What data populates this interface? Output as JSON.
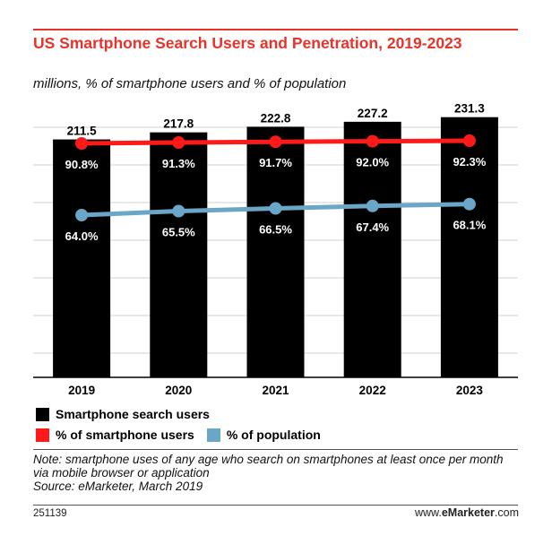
{
  "header": {
    "title": "US Smartphone Search Users and Penetration, 2019-2023",
    "subtitle": "millions, % of smartphone users and % of population"
  },
  "chart_data": {
    "type": "bar",
    "categories": [
      "2019",
      "2020",
      "2021",
      "2022",
      "2023"
    ],
    "series": [
      {
        "name": "Smartphone search users",
        "type": "bar",
        "color": "#000000",
        "values": [
          211.5,
          217.8,
          222.8,
          227.2,
          231.3
        ],
        "labels": [
          "211.5",
          "217.8",
          "222.8",
          "227.2",
          "231.3"
        ]
      },
      {
        "name": "% of smartphone users",
        "type": "line",
        "color": "#ff1a1a",
        "values": [
          90.8,
          91.3,
          91.7,
          92.0,
          92.3
        ],
        "labels": [
          "90.8%",
          "91.3%",
          "91.7%",
          "92.0%",
          "92.3%"
        ]
      },
      {
        "name": "% of population",
        "type": "line",
        "color": "#6aa6c8",
        "values": [
          64.0,
          65.5,
          66.5,
          67.4,
          68.1
        ],
        "labels": [
          "64.0%",
          "65.5%",
          "66.5%",
          "67.4%",
          "68.1%"
        ]
      }
    ],
    "grid": true,
    "legend_position": "bottom-left"
  },
  "legend": {
    "bar": "Smartphone search users",
    "line_red": "% of smartphone users",
    "line_blue": "% of population"
  },
  "colors": {
    "accent": "#e8332a",
    "bar": "#000000",
    "red_line": "#ff1a1a",
    "blue_line": "#6aa6c8"
  },
  "footer": {
    "note": "Note: smartphone uses of any age who search on smartphones at least once per month via mobile browser or application",
    "source": "Source: eMarketer, March 2019",
    "chart_id": "251139",
    "brand_prefix": "www.",
    "brand_bold": "eMarketer",
    "brand_suffix": ".com"
  }
}
